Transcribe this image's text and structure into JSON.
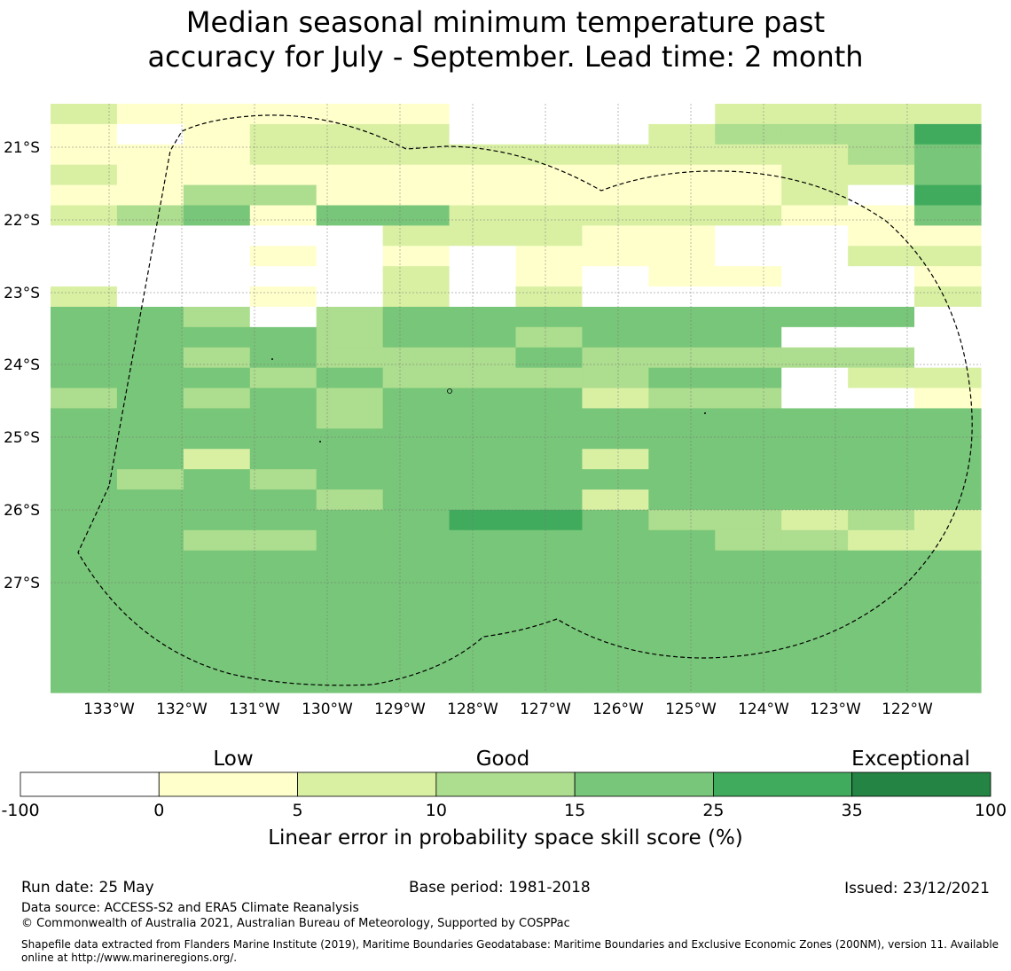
{
  "title": {
    "line1": "Median seasonal minimum temperature past",
    "line2": "accuracy for July - September. Lead time: 2 month"
  },
  "map": {
    "lat_labels": [
      "21°S",
      "22°S",
      "23°S",
      "24°S",
      "25°S",
      "26°S",
      "27°S"
    ],
    "lon_labels": [
      "133°W",
      "132°W",
      "131°W",
      "130°W",
      "129°W",
      "128°W",
      "127°W",
      "126°W",
      "125°W",
      "124°W",
      "123°W",
      "122°W"
    ],
    "class_colors": [
      "#ffffff",
      "#ffffcc",
      "#d9f0a3",
      "#addd8e",
      "#78c679",
      "#41ab5d",
      "#238443"
    ],
    "grid_rows": [
      "21111100002222",
      "10122200023335",
      "11122222222234",
      "21111111111224",
      "11331111111205",
      "23414422222114",
      "00000222110011",
      "00010101110022",
      "00000201011001",
      "20010202000002",
      "44303444444440",
      "44443443444000",
      "44343334333330",
      "44434333344022",
      "34343444233001",
      "44443444444444",
      "44444444444444",
      "44244444244444",
      "43434444444444",
      "44443444244444",
      "44444455433232",
      "44334444443322",
      "44444444444444",
      "44444444444444",
      "44444444444444",
      "44444444444444",
      "44444444444444",
      "44444444444444",
      "44444444444444"
    ]
  },
  "colorbar": {
    "categories": [
      "Low",
      "Good",
      "Exceptional"
    ],
    "ticks": [
      "-100",
      "0",
      "5",
      "10",
      "15",
      "25",
      "35",
      "100"
    ],
    "colors": [
      "#ffffff",
      "#ffffcc",
      "#d9f0a3",
      "#addd8e",
      "#78c679",
      "#41ab5d",
      "#238443"
    ],
    "label": "Linear error in probability space skill score (%)"
  },
  "meta": {
    "run_date": "Run date: 25 May",
    "base_period": "Base period: 1981-2018",
    "issued": "Issued: 23/12/2021",
    "data_source": "Data source: ACCESS-S2 and ERA5 Climate Reanalysis",
    "copyright": "© Commonwealth of Australia 2021, Australian Bureau of Meteorology, Supported by COSPPac",
    "shapefile_note": "Shapefile data extracted from Flanders Marine Institute (2019), Maritime Boundaries Geodatabase: Maritime Boundaries and Exclusive Economic Zones (200NM), version 11. Available online at http://www.marineregions.org/."
  }
}
